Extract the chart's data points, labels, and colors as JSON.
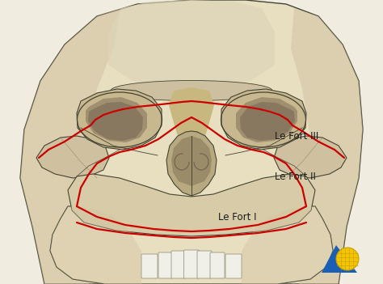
{
  "background_color": "#f0ece0",
  "label_lefort3": "Le Fort III",
  "label_lefort2": "Le Fort II",
  "label_lefort1": "Le Fort I",
  "label_fontsize": 8.5,
  "label_color": "#1a1a1a",
  "line_color": "#cc0000",
  "line_width": 1.6,
  "skull_light": "#e8dfc0",
  "skull_mid": "#cfc0a0",
  "skull_dark": "#b0a080",
  "skull_shadow": "#8a7a60",
  "skull_outline": "#444433",
  "bone_inner": "#c0b090",
  "orbit_fill": "#a09070",
  "orbit_dark": "#706050",
  "nasal_fill": "#b8a880",
  "nasal_dark": "#7a6a50",
  "teeth_fill": "#f0efe8",
  "teeth_edge": "#999980",
  "logo_triangle_color": "#1a5fb4",
  "logo_globe_color": "#f5c400",
  "logo_globe_line": "#c8a000"
}
